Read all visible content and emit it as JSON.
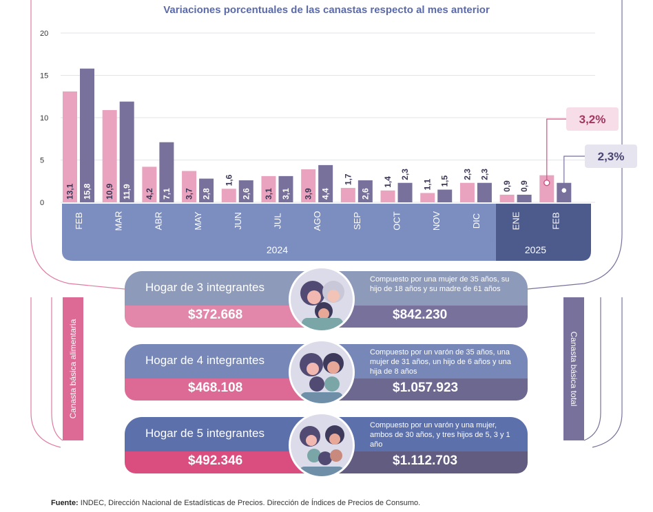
{
  "chart_data": {
    "type": "bar",
    "title": "Variaciones porcentuales de las canastas respecto al mes anterior",
    "ylim": [
      0,
      20
    ],
    "yticks": [
      0,
      5,
      10,
      15,
      20
    ],
    "categories": [
      "FEB",
      "MAR",
      "ABR",
      "MAY",
      "JUN",
      "JUL",
      "AGO",
      "SEP",
      "OCT",
      "NOV",
      "DIC",
      "ENE",
      "FEB"
    ],
    "series": [
      {
        "name": "Canasta básica alimentaria",
        "values": [
          13.1,
          10.9,
          4.2,
          3.7,
          1.6,
          3.1,
          3.9,
          1.7,
          1.4,
          1.1,
          2.3,
          0.9,
          3.2
        ],
        "labels": [
          "13,1",
          "10,9",
          "4,2",
          "3,7",
          "1,6",
          "3,1",
          "3,9",
          "1,7",
          "1,4",
          "1,1",
          "2,3",
          "0,9",
          "3,2"
        ]
      },
      {
        "name": "Canasta básica total",
        "values": [
          15.8,
          11.9,
          7.1,
          2.8,
          2.6,
          3.1,
          4.4,
          2.6,
          2.3,
          1.5,
          2.3,
          0.9,
          2.3
        ],
        "labels": [
          "15,8",
          "11,9",
          "7,1",
          "2,8",
          "2,6",
          "3,1",
          "4,4",
          "2,6",
          "2,3",
          "1,5",
          "2,3",
          "0,9",
          "2,3"
        ]
      }
    ],
    "years": [
      {
        "label": "2024",
        "from": 0,
        "to": 10
      },
      {
        "label": "2025",
        "from": 11,
        "to": 12
      }
    ],
    "callouts": [
      {
        "series": 0,
        "index": 12,
        "text": "3,2%"
      },
      {
        "series": 1,
        "index": 12,
        "text": "2,3%"
      }
    ]
  },
  "colors": {
    "pink": "#eaa3be",
    "purple": "#77719b",
    "axis2024": "#7c8ebf",
    "axis2025": "#4d5a8c",
    "grid": "#e3e3ea",
    "callout_pink": "#d14f82",
    "callout_bg": "#f6dde7",
    "callout_bg2": "#e6e4ef"
  },
  "sidebars": {
    "left": "Canasta básica alimentaria",
    "right": "Canasta básica total"
  },
  "hogares": [
    {
      "name": "Hogar de 3 integrantes",
      "desc": "Compuesto por una mujer de 35 años, su hijo de 18 años y su madre de 61 años",
      "cba": "$372.668",
      "cbt": "$842.230",
      "top": "#8e9ab9",
      "left": "#e387aa",
      "right": "#77719b"
    },
    {
      "name": "Hogar de 4 integrantes",
      "desc": "Compuesto por un varón de 35 años, una mujer de 31 años, un hijo de 6 años y una hija de 8 años",
      "cba": "$468.108",
      "cbt": "$1.057.923",
      "top": "#7788b8",
      "left": "#dd6995",
      "right": "#6d6890"
    },
    {
      "name": "Hogar de 5 integrantes",
      "desc": "Compuesto por un varón y una mujer, ambos de 30 años, y tres hijos de 5, 3 y 1 año",
      "cba": "$492.346",
      "cbt": "$1.112.703",
      "top": "#5c70ab",
      "left": "#d94d7f",
      "right": "#615c80"
    }
  ],
  "source": {
    "label": "Fuente:",
    "text": "INDEC, Dirección Nacional de Estadísticas de Precios. Dirección de Índices de Precios de Consumo."
  }
}
